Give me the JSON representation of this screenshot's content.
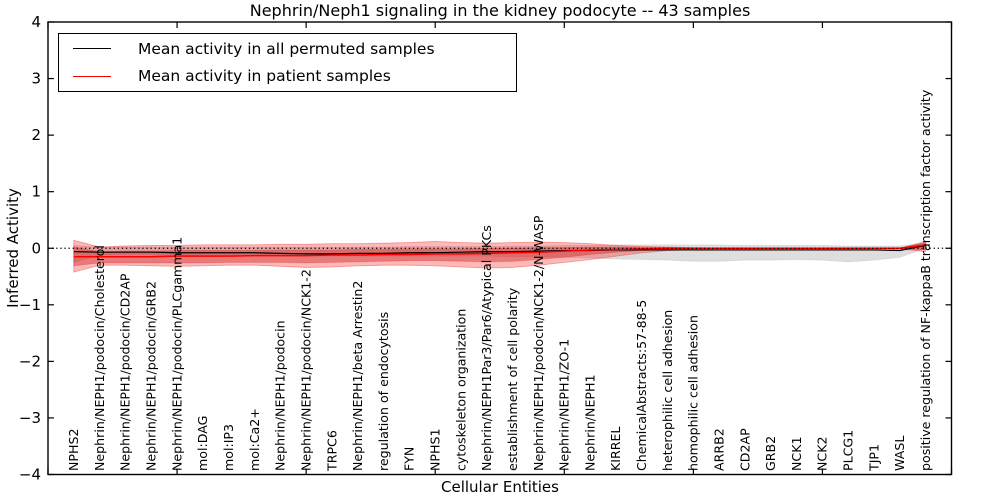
{
  "title": "Nephrin/Neph1 signaling in the kidney podocyte -- 43 samples",
  "axes": {
    "ylabel": "Inferred Activity",
    "xlabel": "Cellular Entities"
  },
  "legend": {
    "entries": [
      {
        "label": "Mean activity in all permuted samples",
        "color": "#000000"
      },
      {
        "label": "Mean activity in patient samples",
        "color": "#ff0000"
      }
    ]
  },
  "chart_data": {
    "type": "line",
    "title": "Nephrin/Neph1 signaling in the kidney podocyte -- 43 samples",
    "xlabel": "Cellular Entities",
    "ylabel": "Inferred Activity",
    "ylim": [
      -4,
      4
    ],
    "yticks": [
      4,
      3,
      2,
      1,
      0,
      -1,
      -2,
      -3,
      -4
    ],
    "ytick_labels": [
      "4",
      "3",
      "2",
      "1",
      "0",
      "−1",
      "−2",
      "−3",
      "−4"
    ],
    "xlim": [
      0,
      35
    ],
    "xticks": [
      0,
      5,
      10,
      15,
      20,
      25,
      30,
      35
    ],
    "grid": false,
    "legend_position": "upper left",
    "zero_line": {
      "y": 0,
      "style": "dotted",
      "color": "#000000"
    },
    "categories": [
      "NPHS2",
      "Nephrin/NEPH1/podocin/Cholesterol",
      "Nephrin/NEPH1/podocin/CD2AP",
      "Nephrin/NEPH1/podocin/GRB2",
      "Nephrin/NEPH1/podocin/PLCgamma1",
      "mol:DAG",
      "mol:IP3",
      "mol:Ca2+",
      "Nephrin/NEPH1/podocin",
      "Nephrin/NEPH1/podocin/NCK1-2",
      "TRPC6",
      "Nephrin/NEPH1/beta Arrestin2",
      "regulation of endocytosis",
      "FYN",
      "NPHS1",
      "cytoskeleton organization",
      "Nephrin/NEPH1Par3/Par6/Atypical PKCs",
      "establishment of cell polarity",
      "Nephrin/NEPH1/podocin/NCK1-2/N-WASP",
      "Nephrin/NEPH1/ZO-1",
      "Nephrin/NEPH1",
      "KIRREL",
      "ChemicalAbstracts:57-88-5",
      "heterophilic cell adhesion",
      "homophilic cell adhesion",
      "ARRB2",
      "CD2AP",
      "GRB2",
      "NCK1",
      "NCK2",
      "PLCG1",
      "TJP1",
      "WASL",
      "positive regulation of NF-kappaB transcription factor activity"
    ],
    "series": [
      {
        "name": "Mean activity in all permuted samples",
        "color": "#000000",
        "width": 1.2,
        "values": [
          -0.06,
          -0.07,
          -0.07,
          -0.07,
          -0.08,
          -0.08,
          -0.08,
          -0.08,
          -0.09,
          -0.1,
          -0.1,
          -0.09,
          -0.09,
          -0.08,
          -0.08,
          -0.07,
          -0.06,
          -0.06,
          -0.05,
          -0.04,
          -0.04,
          -0.03,
          -0.03,
          -0.03,
          -0.03,
          -0.03,
          -0.03,
          -0.03,
          -0.03,
          -0.03,
          -0.03,
          -0.03,
          -0.04,
          0.05
        ]
      },
      {
        "name": "Mean activity in patient samples",
        "color": "#ff0000",
        "width": 1.5,
        "values": [
          -0.15,
          -0.15,
          -0.15,
          -0.15,
          -0.14,
          -0.14,
          -0.14,
          -0.13,
          -0.13,
          -0.13,
          -0.12,
          -0.12,
          -0.11,
          -0.11,
          -0.1,
          -0.1,
          -0.09,
          -0.08,
          -0.07,
          -0.05,
          -0.03,
          -0.02,
          -0.01,
          0.0,
          0.0,
          0.0,
          0.0,
          0.0,
          0.0,
          0.0,
          0.0,
          0.0,
          0.0,
          0.06
        ]
      }
    ],
    "bands": [
      {
        "name": "permuted-samples-range",
        "fill": "rgba(0,0,0,0.13)",
        "edge": "rgba(0,0,0,0.08)",
        "upper": [
          0.05,
          0.02,
          0.02,
          0.02,
          0.02,
          0.02,
          0.02,
          0.02,
          0.02,
          0.02,
          0.02,
          0.02,
          0.02,
          0.03,
          0.03,
          0.03,
          0.03,
          0.04,
          0.04,
          0.05,
          0.05,
          0.06,
          0.06,
          0.06,
          0.06,
          0.06,
          0.05,
          0.05,
          0.05,
          0.05,
          0.04,
          0.04,
          0.04,
          0.09
        ],
        "lower": [
          -0.25,
          -0.12,
          -0.12,
          -0.12,
          -0.13,
          -0.13,
          -0.13,
          -0.13,
          -0.14,
          -0.14,
          -0.14,
          -0.14,
          -0.14,
          -0.14,
          -0.14,
          -0.14,
          -0.14,
          -0.15,
          -0.15,
          -0.16,
          -0.17,
          -0.19,
          -0.2,
          -0.21,
          -0.23,
          -0.23,
          -0.21,
          -0.21,
          -0.2,
          -0.21,
          -0.24,
          -0.21,
          -0.16,
          0.0
        ]
      },
      {
        "name": "patient-samples-range-outer",
        "fill": "rgba(255,0,0,0.28)",
        "edge": "rgba(230,60,60,0.45)",
        "upper": [
          0.14,
          0.02,
          0.04,
          0.05,
          0.05,
          0.06,
          0.06,
          0.06,
          0.07,
          0.07,
          0.08,
          0.08,
          0.09,
          0.1,
          0.12,
          0.1,
          0.09,
          0.1,
          0.11,
          0.1,
          0.08,
          0.05,
          0.03,
          0.02,
          0.01,
          0.0,
          0.0,
          0.0,
          0.0,
          0.0,
          0.0,
          0.0,
          0.0,
          0.12
        ],
        "lower": [
          -0.42,
          -0.3,
          -0.3,
          -0.31,
          -0.32,
          -0.31,
          -0.3,
          -0.3,
          -0.32,
          -0.34,
          -0.33,
          -0.31,
          -0.3,
          -0.3,
          -0.31,
          -0.33,
          -0.35,
          -0.34,
          -0.3,
          -0.25,
          -0.2,
          -0.14,
          -0.08,
          -0.04,
          -0.02,
          -0.01,
          -0.01,
          -0.01,
          -0.01,
          -0.01,
          -0.01,
          -0.01,
          -0.01,
          -0.06
        ]
      },
      {
        "name": "patient-samples-range-inner",
        "fill": "rgba(200,30,30,0.40)",
        "edge": "rgba(200,30,30,0.25)",
        "upper": [
          0.02,
          -0.06,
          -0.05,
          -0.05,
          -0.04,
          -0.04,
          -0.04,
          -0.04,
          -0.03,
          -0.03,
          -0.03,
          -0.02,
          -0.02,
          -0.01,
          -0.01,
          -0.01,
          0.0,
          0.0,
          0.01,
          0.01,
          0.02,
          0.02,
          0.01,
          0.01,
          0.0,
          0.0,
          0.0,
          0.0,
          0.0,
          0.0,
          0.0,
          0.0,
          0.0,
          0.1
        ],
        "lower": [
          -0.31,
          -0.26,
          -0.26,
          -0.26,
          -0.26,
          -0.26,
          -0.25,
          -0.25,
          -0.25,
          -0.26,
          -0.25,
          -0.24,
          -0.23,
          -0.22,
          -0.22,
          -0.23,
          -0.24,
          -0.23,
          -0.2,
          -0.16,
          -0.11,
          -0.07,
          -0.04,
          -0.02,
          -0.01,
          -0.01,
          -0.01,
          -0.01,
          -0.01,
          -0.01,
          -0.01,
          -0.01,
          -0.01,
          -0.03
        ]
      }
    ]
  }
}
